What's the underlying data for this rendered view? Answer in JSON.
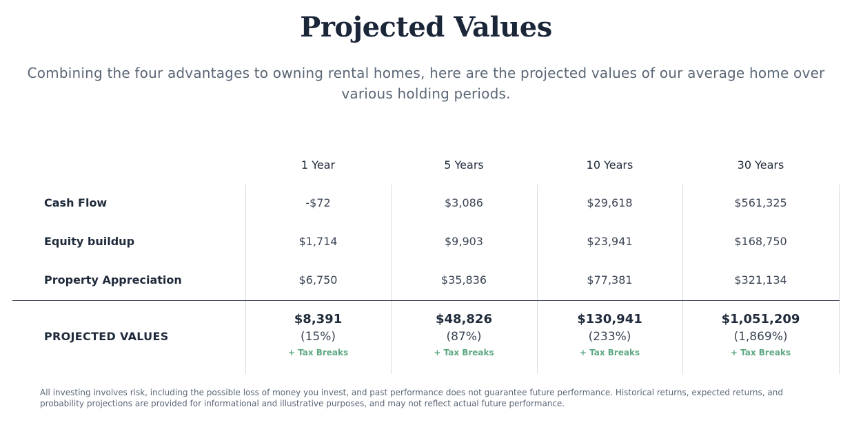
{
  "header": {
    "title": "Projected Values",
    "subtitle": "Combining the four advantages to owning rental homes, here are the projected values of our average home over various holding periods."
  },
  "table": {
    "columns": [
      "1 Year",
      "5 Years",
      "10 Years",
      "30 Years"
    ],
    "rows": [
      {
        "label": "Cash Flow",
        "values": [
          "-$72",
          "$3,086",
          "$29,618",
          "$561,325"
        ]
      },
      {
        "label": "Equity buildup",
        "values": [
          "$1,714",
          "$9,903",
          "$23,941",
          "$168,750"
        ]
      },
      {
        "label": "Property Appreciation",
        "values": [
          "$6,750",
          "$35,836",
          "$77,381",
          "$321,134"
        ]
      }
    ],
    "total": {
      "label": "PROJECTED VALUES",
      "values": [
        "$8,391",
        "$48,826",
        "$130,941",
        "$1,051,209"
      ],
      "percents": [
        "(15%)",
        "(87%)",
        "(233%)",
        "(1,869%)"
      ],
      "extra": [
        "+ Tax Breaks",
        "+ Tax Breaks",
        "+ Tax Breaks",
        "+ Tax Breaks"
      ]
    }
  },
  "disclaimer": "All investing involves risk, including the possible loss of money you invest, and past performance does not guarantee future performance. Historical returns, expected returns, and probability projections are provided for informational and illustrative purposes, and may not reflect actual future performance.",
  "colors": {
    "heading": "#1b2639",
    "text": "#3b4554",
    "muted": "#5a6675",
    "accent_green": "#5ea882",
    "divider": "#d9dde2"
  }
}
